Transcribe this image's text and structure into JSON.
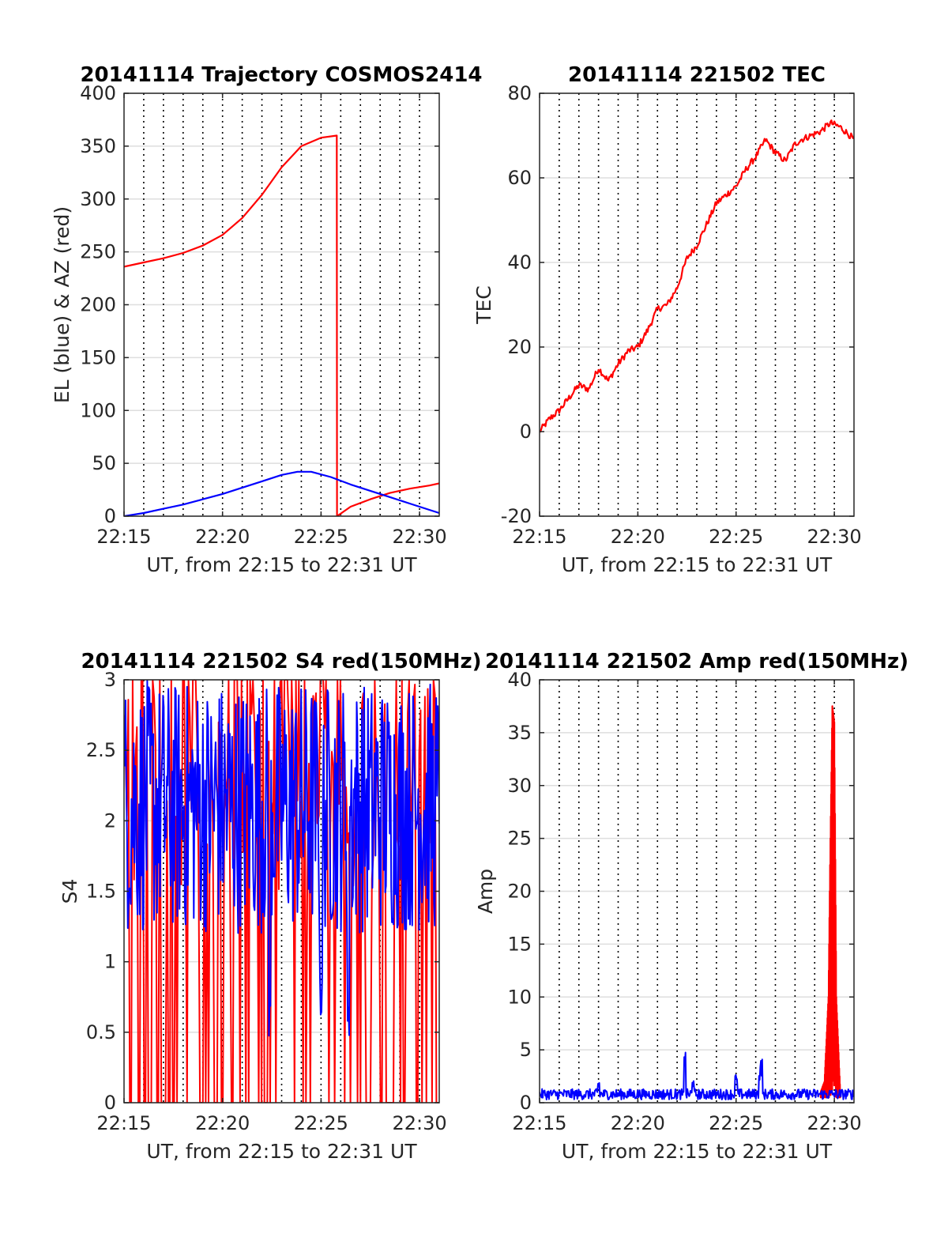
{
  "chart_data": [
    {
      "type": "line",
      "title": "20141114 Trajectory COSMOS2414",
      "xlabel": "UT, from 22:15 to 22:31 UT",
      "ylabel": "EL (blue) & AZ (red)",
      "xlim": [
        0,
        16
      ],
      "ylim": [
        0,
        400
      ],
      "xticks": [
        0,
        5,
        10,
        15
      ],
      "xticklabels": [
        "22:15",
        "22:20",
        "22:25",
        "22:30"
      ],
      "yticks": [
        0,
        50,
        100,
        150,
        200,
        250,
        300,
        350,
        400
      ],
      "yticklabels": [
        "0",
        "50",
        "100",
        "150",
        "200",
        "250",
        "300",
        "350",
        "400"
      ],
      "grid": true,
      "series": [
        {
          "name": "AZ",
          "color": "#ff0000",
          "segments": [
            {
              "x": [
                0,
                1,
                2,
                3,
                4,
                5,
                6,
                7,
                8,
                9,
                10,
                10.8,
                10.81
              ],
              "y": [
                236,
                240,
                244,
                249,
                256,
                266,
                282,
                304,
                330,
                350,
                358,
                360,
                0
              ]
            },
            {
              "x": [
                10.81,
                11.5,
                12.5,
                13.5,
                14.5,
                15.5,
                16
              ],
              "y": [
                0,
                9,
                16,
                22,
                26,
                29,
                31
              ]
            }
          ]
        },
        {
          "name": "EL",
          "color": "#0000ff",
          "segments": [
            {
              "x": [
                0,
                1,
                2,
                3,
                4,
                5,
                6,
                7,
                8,
                8.8,
                9.5,
                10.5,
                11.5,
                12.5,
                13.5,
                14.5,
                15.5,
                16
              ],
              "y": [
                0,
                3,
                7,
                11,
                16,
                21,
                27,
                33,
                39,
                42,
                42,
                37,
                30,
                24,
                18,
                12,
                6,
                3
              ]
            }
          ]
        }
      ]
    },
    {
      "type": "line",
      "title": "20141114 221502 TEC",
      "xlabel": "UT, from 22:15 to 22:31 UT",
      "ylabel": "TEC",
      "xlim": [
        0,
        16
      ],
      "ylim": [
        -20,
        80
      ],
      "xticks": [
        0,
        5,
        10,
        15
      ],
      "xticklabels": [
        "22:15",
        "22:20",
        "22:25",
        "22:30"
      ],
      "yticks": [
        -20,
        0,
        20,
        40,
        60,
        80
      ],
      "yticklabels": [
        "-20",
        "0",
        "20",
        "40",
        "60",
        "80"
      ],
      "grid": true,
      "series": [
        {
          "name": "TEC",
          "color": "#ff0000",
          "noise": 0.8,
          "points": 320,
          "x": [
            0,
            0.5,
            1,
            1.5,
            2,
            2.5,
            3,
            3.5,
            4,
            4.5,
            5,
            5.5,
            6,
            6.5,
            7,
            7.5,
            8,
            8.5,
            9,
            9.5,
            10,
            10.5,
            11,
            11.5,
            12,
            12.5,
            13,
            13.3,
            13.8,
            14.3,
            14.8,
            15.3,
            15.8,
            16
          ],
          "y": [
            0,
            3,
            5,
            8,
            11,
            10,
            15,
            12,
            16,
            19,
            20,
            24,
            29,
            30,
            34,
            41,
            44,
            49,
            54,
            56,
            58,
            62,
            65,
            69,
            66,
            64,
            68,
            69,
            70,
            71,
            73,
            72,
            70,
            69
          ]
        }
      ]
    },
    {
      "type": "line",
      "title": "20141114 221502 S4 red(150MHz)",
      "xlabel": "UT, from 22:15 to 22:31 UT",
      "ylabel": "S4",
      "xlim": [
        0,
        16
      ],
      "ylim": [
        0,
        3
      ],
      "xticks": [
        0,
        5,
        10,
        15
      ],
      "xticklabels": [
        "22:15",
        "22:20",
        "22:25",
        "22:30"
      ],
      "yticks": [
        0,
        0.5,
        1,
        1.5,
        2,
        2.5,
        3
      ],
      "yticklabels": [
        "0",
        "0.5",
        "1",
        "1.5",
        "2",
        "2.5",
        "3"
      ],
      "grid": true,
      "series": [
        {
          "name": "S4 red",
          "color": "#ff0000",
          "style": "noise",
          "points": 220,
          "range": [
            0,
            3
          ]
        },
        {
          "name": "S4 blue",
          "color": "#0000ff",
          "style": "noise",
          "points": 420,
          "range": [
            1.2,
            3
          ],
          "dips": [
            {
              "x": 7.4,
              "y": 0.45
            },
            {
              "x": 10.0,
              "y": 0.6
            },
            {
              "x": 11.4,
              "y": 0.4
            }
          ]
        }
      ]
    },
    {
      "type": "line",
      "title": "20141114 221502 Amp red(150MHz)",
      "xlabel": "UT, from 22:15 to 22:31 UT",
      "ylabel": "Amp",
      "xlim": [
        0,
        16
      ],
      "ylim": [
        0,
        40
      ],
      "xticks": [
        0,
        5,
        10,
        15
      ],
      "xticklabels": [
        "22:15",
        "22:20",
        "22:25",
        "22:30"
      ],
      "yticks": [
        0,
        5,
        10,
        15,
        20,
        25,
        30,
        35,
        40
      ],
      "yticklabels": [
        "0",
        "5",
        "10",
        "15",
        "20",
        "25",
        "30",
        "35",
        "40"
      ],
      "grid": true,
      "series": [
        {
          "name": "Amp red",
          "color": "#ff0000",
          "style": "spike",
          "x": [
            14.3,
            14.5,
            14.7,
            14.8,
            14.9,
            15.0,
            15.1,
            15.3
          ],
          "y": [
            1,
            2,
            10,
            25,
            37.5,
            36,
            10,
            1
          ]
        },
        {
          "name": "Amp blue",
          "color": "#0000ff",
          "style": "noise",
          "points": 500,
          "range": [
            0.3,
            1.3
          ],
          "peaks": [
            {
              "x": 7.4,
              "y": 5
            },
            {
              "x": 7.8,
              "y": 2.2
            },
            {
              "x": 10.0,
              "y": 2.7
            },
            {
              "x": 11.3,
              "y": 4.2
            },
            {
              "x": 11.2,
              "y": 3.5
            },
            {
              "x": 3.0,
              "y": 2.2
            }
          ]
        }
      ]
    }
  ]
}
